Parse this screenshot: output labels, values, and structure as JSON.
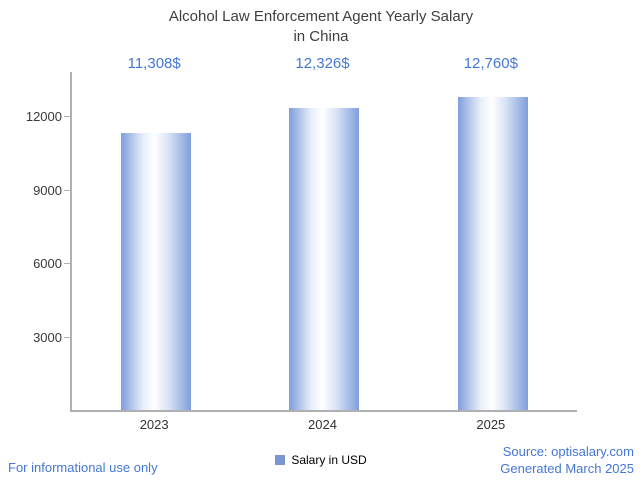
{
  "page": {
    "legend_label": "Salary in USD",
    "footer_left": "For informational use only",
    "footer_source": "Source: optisalary.com",
    "footer_generated": "Generated March 2025"
  },
  "colors": {
    "accent_blue": "#4477d6",
    "bar_edge": "#7f9edb",
    "bar_center": "#ffffff",
    "legend_square": "#7a97cf",
    "axis": "#b0b0b0",
    "title_color": "#3f3f3f"
  },
  "chart_data": {
    "type": "bar",
    "title": "Alcohol Law Enforcement Agent Yearly Salary in China",
    "title_lines": [
      "Alcohol Law Enforcement Agent Yearly Salary",
      "in China"
    ],
    "categories": [
      "2023",
      "2024",
      "2025"
    ],
    "series": [
      {
        "name": "Salary in USD",
        "values": [
          11308,
          12326,
          12760
        ]
      }
    ],
    "value_labels": [
      "11,308$",
      "12,326$",
      "12,760$"
    ],
    "xlabel": "",
    "ylabel": "",
    "ylim": [
      0,
      13800
    ],
    "yticks": [
      3000,
      6000,
      9000,
      12000
    ],
    "grid": false,
    "legend_position": "bottom"
  }
}
